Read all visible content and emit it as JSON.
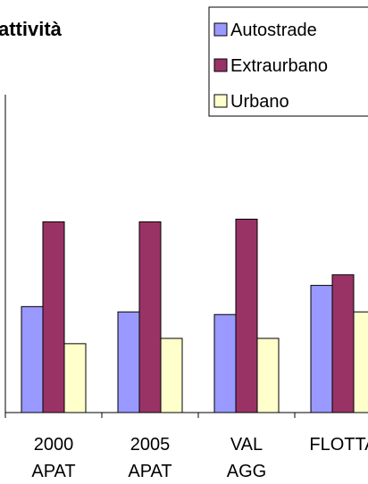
{
  "chart_data": {
    "type": "bar",
    "title": "attività",
    "categories": [
      [
        "2000",
        "APAT"
      ],
      [
        "2005",
        "APAT"
      ],
      [
        "VAL",
        "AGG"
      ],
      [
        "FLOTTA",
        ""
      ]
    ],
    "series": [
      {
        "name": "Autostrade",
        "color": "#9999ff",
        "values": [
          2.0,
          1.9,
          1.85,
          2.4
        ]
      },
      {
        "name": "Extraurbano",
        "color": "#993366",
        "values": [
          3.6,
          3.6,
          3.65,
          2.6
        ]
      },
      {
        "name": "Urbano",
        "color": "#ffffcc",
        "values": [
          1.3,
          1.4,
          1.4,
          1.9
        ]
      }
    ],
    "ylim": [
      0,
      6
    ],
    "grid": false,
    "legend_position": "top-right"
  }
}
